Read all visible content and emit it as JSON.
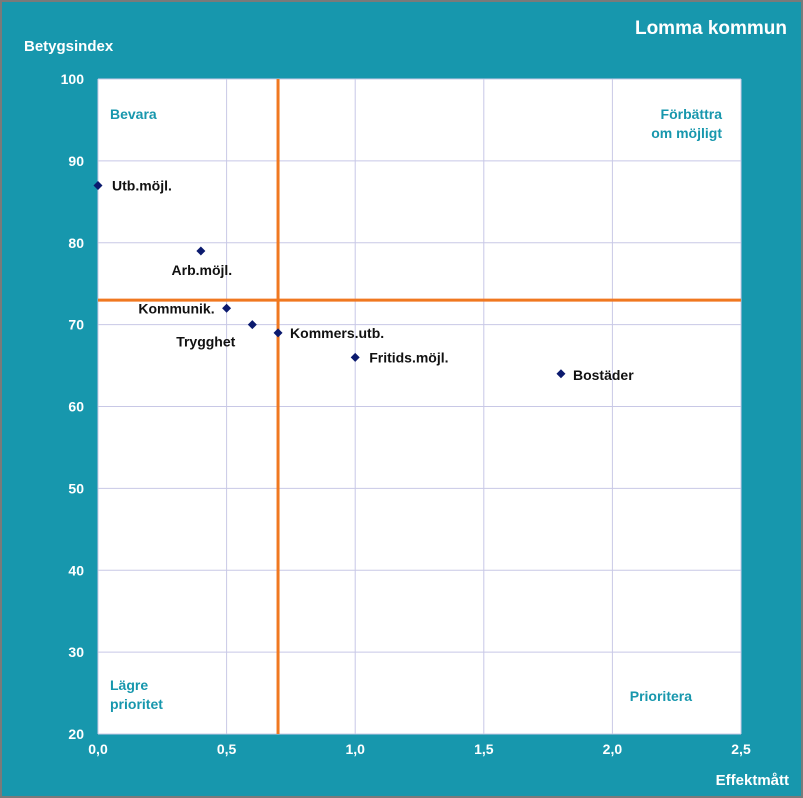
{
  "header": {
    "title": "Lomma kommun"
  },
  "chart_data": {
    "type": "scatter",
    "title": "",
    "xlabel": "Effektmått",
    "ylabel": "Betygsindex",
    "xlim": [
      0,
      2.5
    ],
    "ylim": [
      20,
      100
    ],
    "x_ticks": [
      "0,0",
      "0,5",
      "1,0",
      "1,5",
      "2,0",
      "2,5"
    ],
    "y_ticks": [
      "20",
      "30",
      "40",
      "50",
      "60",
      "70",
      "80",
      "90",
      "100"
    ],
    "grid": true,
    "points": [
      {
        "label": "Utb.möjl.",
        "x": 0.0,
        "y": 87
      },
      {
        "label": "Arb.möjl.",
        "x": 0.4,
        "y": 79
      },
      {
        "label": "Kommunik.",
        "x": 0.5,
        "y": 72
      },
      {
        "label": "Trygghet",
        "x": 0.6,
        "y": 70
      },
      {
        "label": "Kommers.utb.",
        "x": 0.7,
        "y": 69
      },
      {
        "label": "Fritids.möjl.",
        "x": 1.0,
        "y": 66
      },
      {
        "label": "Bostäder",
        "x": 1.8,
        "y": 64
      }
    ],
    "reference_lines": {
      "x": 0.7,
      "y": 73
    },
    "quadrant_labels": {
      "top_left": "Bevara",
      "top_right_1": "Förbättra",
      "top_right_2": "om möjligt",
      "bottom_left_1": "Lägre",
      "bottom_left_2": "prioritet",
      "bottom_right": "Prioritera"
    },
    "colors": {
      "frame": "#1797ad",
      "plot_bg": "#ffffff",
      "grid": "#c8c8e6",
      "reference_line": "#f07820",
      "marker": "#0b1a6e"
    }
  }
}
